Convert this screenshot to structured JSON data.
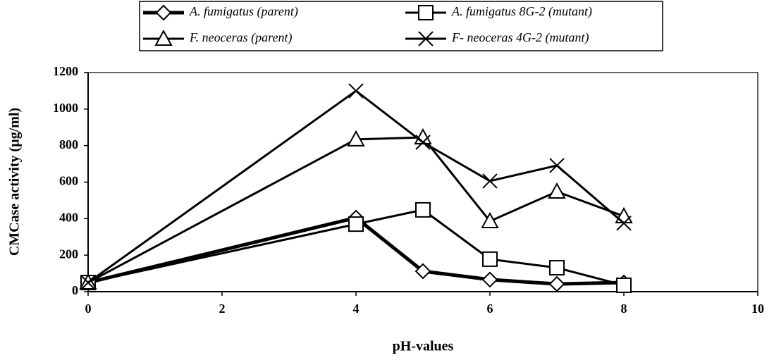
{
  "chart_data": {
    "type": "line",
    "x_label": "pH-values",
    "y_label": "CMCase activity (µg/ml)",
    "xlim": [
      0,
      10
    ],
    "xticks": [
      0,
      2,
      4,
      6,
      8,
      10
    ],
    "ylim": [
      0,
      1200
    ],
    "yticks": [
      0,
      200,
      400,
      600,
      800,
      1000,
      1200
    ],
    "x": [
      0,
      4,
      5,
      6,
      7,
      8
    ],
    "legend": "top",
    "series": [
      {
        "name": "A. fumigatus (parent)",
        "color": "#000000",
        "marker": "diamond",
        "values": [
          50,
          405,
          112,
          66,
          42,
          50
        ]
      },
      {
        "name": "A. fumigatus 8G-2 (mutant)",
        "color": "#000000",
        "marker": "square",
        "values": [
          50,
          370,
          448,
          178,
          131,
          35
        ]
      },
      {
        "name": "F. neoceras (parent)",
        "color": "#000000",
        "marker": "triangle",
        "values": [
          50,
          834,
          845,
          386,
          548,
          413
        ]
      },
      {
        "name": "F- neoceras 4G-2 (mutant)",
        "color": "#000000",
        "marker": "cross",
        "values": [
          50,
          1100,
          818,
          606,
          691,
          375
        ]
      }
    ]
  }
}
